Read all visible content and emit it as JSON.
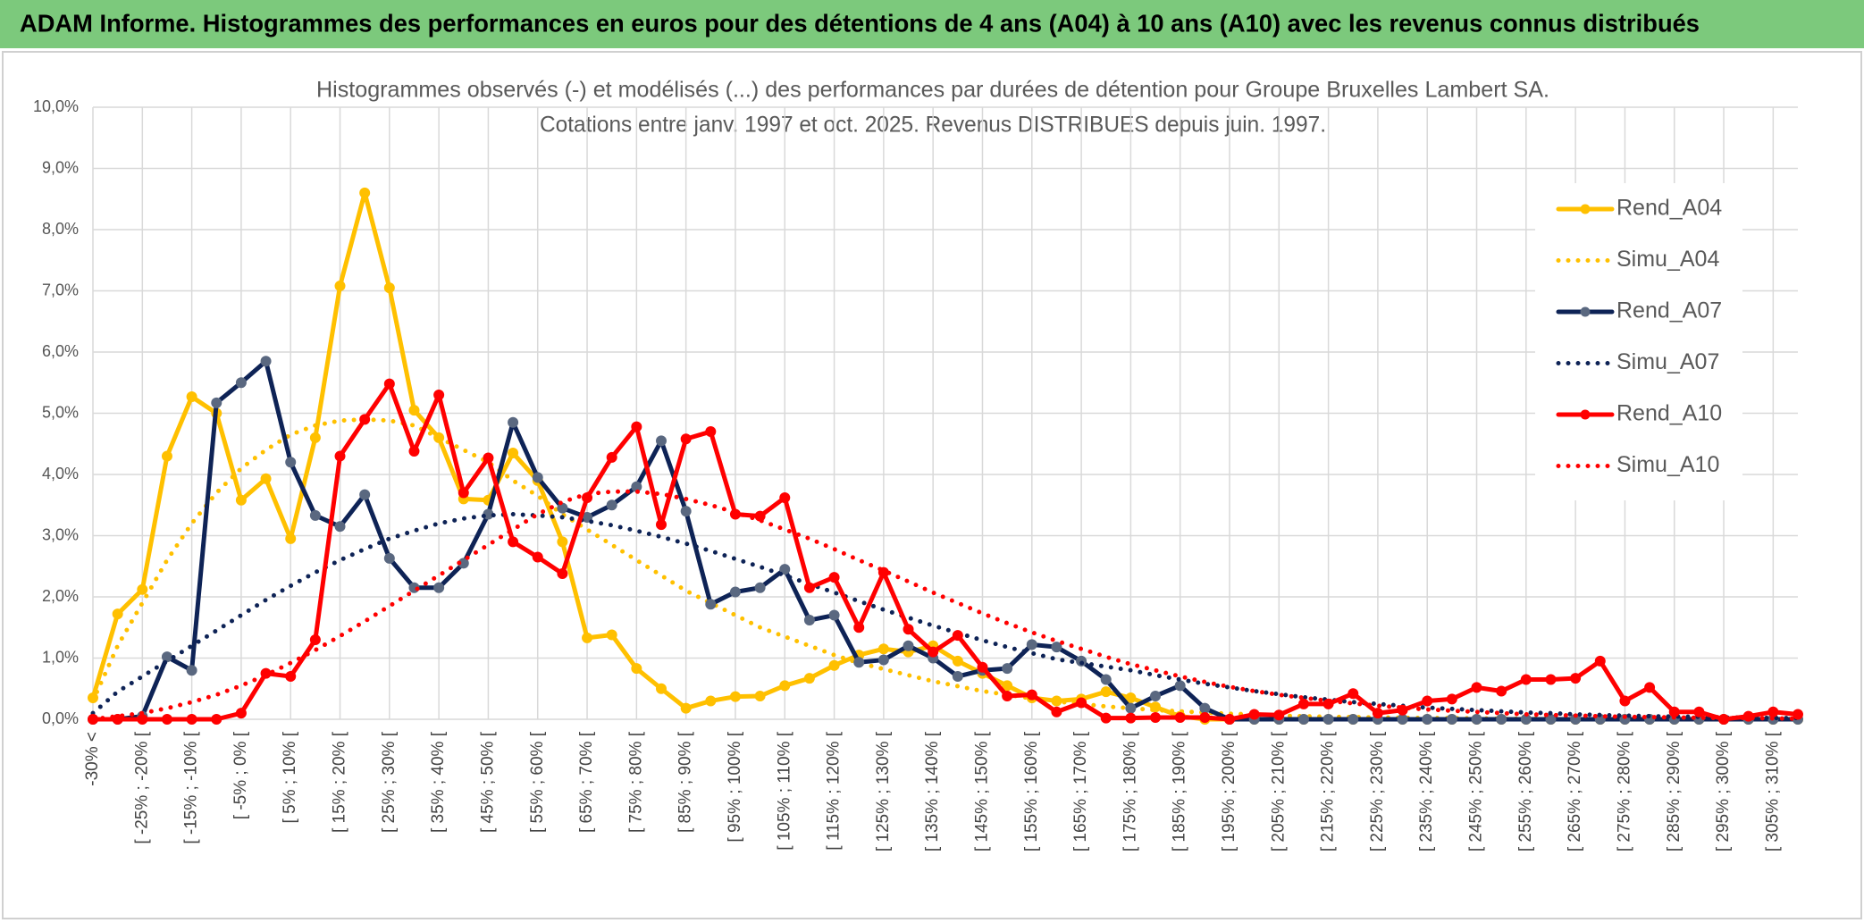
{
  "header": {
    "title": "ADAM Informe. Histogrammes des performances en euros pour des détentions de 4 ans (A04) à 10 ans (A10) avec les revenus connus distribués"
  },
  "chart_data": {
    "type": "line",
    "title": "Histogrammes observés (-) et modélisés (...) des performances par durées de détention pour Groupe Bruxelles Lambert SA.",
    "subtitle": "Cotations entre janv. 1997 et oct. 2025. Revenus DISTRIBUES depuis juin. 1997.",
    "categories": [
      "-30% <",
      null,
      "[ -25% ; -20% [",
      null,
      "[ -15% ; -10% [",
      null,
      "[ -5% ; 0% [",
      null,
      "[ 5% ; 10% [",
      null,
      "[ 15% ; 20% [",
      null,
      "[ 25% ; 30% [",
      null,
      "[ 35% ; 40% [",
      null,
      "[ 45% ; 50% [",
      null,
      "[ 55% ; 60% [",
      null,
      "[ 65% ; 70% [",
      null,
      "[ 75% ; 80% [",
      null,
      "[ 85% ; 90% [",
      null,
      "[ 95% ; 100% [",
      null,
      "[ 105% ; 110% [",
      null,
      "[ 115% ; 120% [",
      null,
      "[ 125% ; 130% [",
      null,
      "[ 135% ; 140% [",
      null,
      "[ 145% ; 150% [",
      null,
      "[ 155% ; 160% [",
      null,
      "[ 165% ; 170% [",
      null,
      "[ 175% ; 180% [",
      null,
      "[ 185% ; 190% [",
      null,
      "[ 195% ; 200% [",
      null,
      "[ 205% ; 210% [",
      null,
      "[ 215% ; 220% [",
      null,
      "[ 225% ; 230% [",
      null,
      "[ 235% ; 240% [",
      null,
      "[ 245% ; 250% [",
      null,
      "[ 255% ; 260% [",
      null,
      "[ 265% ; 270% [",
      null,
      "[ 275% ; 280% [",
      null,
      "[ 285% ; 290% [",
      null,
      "[ 295% ; 300% [",
      null,
      "[ 305% ; 310% [",
      null
    ],
    "series": [
      {
        "name": "Rend_A04",
        "color": "#ffc000",
        "line_style": "solid",
        "markers": true,
        "values": [
          0.35,
          1.72,
          2.12,
          4.3,
          5.27,
          5.0,
          3.58,
          3.93,
          2.95,
          4.6,
          7.08,
          8.6,
          7.05,
          5.05,
          4.6,
          3.6,
          3.58,
          4.35,
          3.9,
          2.9,
          1.33,
          1.38,
          0.83,
          0.5,
          0.18,
          0.3,
          0.37,
          0.38,
          0.55,
          0.67,
          0.88,
          1.05,
          1.15,
          1.1,
          1.2,
          0.95,
          0.75,
          0.55,
          0.35,
          0.3,
          0.33,
          0.45,
          0.35,
          0.2,
          0.05,
          0,
          0,
          0,
          0,
          0,
          0,
          0,
          0,
          0,
          0,
          0,
          0,
          0,
          0,
          0,
          0,
          0,
          0,
          0,
          0,
          0,
          0,
          0,
          0,
          0
        ]
      },
      {
        "name": "Simu_A04",
        "color": "#ffc000",
        "line_style": "dotted",
        "markers": false,
        "values": [
          0.3,
          1.2,
          1.9,
          2.6,
          3.2,
          3.7,
          4.1,
          4.4,
          4.65,
          4.8,
          4.88,
          4.9,
          4.88,
          4.8,
          4.6,
          4.4,
          4.2,
          3.9,
          3.65,
          3.35,
          3.1,
          2.85,
          2.6,
          2.35,
          2.1,
          1.9,
          1.7,
          1.5,
          1.35,
          1.2,
          1.05,
          0.92,
          0.82,
          0.72,
          0.62,
          0.54,
          0.46,
          0.4,
          0.34,
          0.29,
          0.25,
          0.21,
          0.18,
          0.15,
          0.13,
          0.11,
          0.09,
          0.08,
          0.06,
          0.05,
          0.04,
          0.035,
          0.03,
          0.025,
          0.02,
          0.02,
          0.015,
          0.01,
          0.01,
          0.01,
          0,
          0,
          0,
          0,
          0,
          0,
          0,
          0,
          0,
          0
        ]
      },
      {
        "name": "Rend_A07",
        "color": "#0e2356",
        "marker_color": "#5a6880",
        "line_style": "solid",
        "markers": true,
        "values": [
          0,
          0,
          0.05,
          1.02,
          0.8,
          5.17,
          5.5,
          5.85,
          4.2,
          3.33,
          3.15,
          3.67,
          2.63,
          2.15,
          2.15,
          2.55,
          3.35,
          4.85,
          3.95,
          3.45,
          3.3,
          3.5,
          3.8,
          4.55,
          3.4,
          1.88,
          2.08,
          2.15,
          2.45,
          1.62,
          1.7,
          0.93,
          0.97,
          1.2,
          1.0,
          0.7,
          0.8,
          0.83,
          1.22,
          1.18,
          0.95,
          0.65,
          0.18,
          0.38,
          0.55,
          0.18,
          0,
          0,
          0,
          0,
          0,
          0,
          0,
          0,
          0,
          0,
          0,
          0,
          0,
          0,
          0,
          0,
          0,
          0,
          0,
          0,
          0,
          0,
          0,
          0
        ]
      },
      {
        "name": "Simu_A07",
        "color": "#0e2356",
        "line_style": "dotted",
        "markers": false,
        "values": [
          0.1,
          0.45,
          0.7,
          0.95,
          1.2,
          1.45,
          1.7,
          1.95,
          2.18,
          2.4,
          2.6,
          2.78,
          2.95,
          3.08,
          3.2,
          3.28,
          3.33,
          3.35,
          3.33,
          3.3,
          3.24,
          3.17,
          3.08,
          2.98,
          2.87,
          2.75,
          2.62,
          2.49,
          2.35,
          2.21,
          2.07,
          1.93,
          1.79,
          1.66,
          1.53,
          1.41,
          1.29,
          1.18,
          1.08,
          0.98,
          0.92,
          0.86,
          0.8,
          0.72,
          0.65,
          0.58,
          0.52,
          0.46,
          0.41,
          0.36,
          0.32,
          0.28,
          0.25,
          0.22,
          0.19,
          0.17,
          0.15,
          0.13,
          0.11,
          0.1,
          0.08,
          0.07,
          0.06,
          0.05,
          0.045,
          0.04,
          0.03,
          0.03,
          0.02,
          0.02
        ]
      },
      {
        "name": "Rend_A10",
        "color": "#ff0000",
        "line_style": "solid",
        "markers": true,
        "values": [
          0,
          0,
          0,
          0,
          0,
          0,
          0.1,
          0.75,
          0.7,
          1.3,
          4.3,
          4.9,
          5.48,
          4.38,
          5.3,
          3.7,
          4.27,
          2.9,
          2.65,
          2.38,
          3.62,
          4.28,
          4.78,
          3.18,
          4.58,
          4.7,
          3.35,
          3.32,
          3.62,
          2.15,
          2.32,
          1.5,
          2.4,
          1.47,
          1.1,
          1.37,
          0.85,
          0.38,
          0.4,
          0.12,
          0.27,
          0.02,
          0.02,
          0.03,
          0.03,
          0.03,
          0,
          0.08,
          0.07,
          0.25,
          0.25,
          0.42,
          0.1,
          0.15,
          0.3,
          0.33,
          0.52,
          0.46,
          0.65,
          0.65,
          0.67,
          0.95,
          0.3,
          0.52,
          0.12,
          0.12,
          0,
          0.05,
          0.12,
          0.08
        ]
      },
      {
        "name": "Simu_A10",
        "color": "#ff0000",
        "line_style": "dotted",
        "markers": false,
        "values": [
          0,
          0.05,
          0.1,
          0.18,
          0.28,
          0.4,
          0.55,
          0.72,
          0.92,
          1.13,
          1.36,
          1.6,
          1.85,
          2.1,
          2.35,
          2.6,
          2.85,
          3.1,
          3.35,
          3.55,
          3.68,
          3.72,
          3.72,
          3.68,
          3.6,
          3.5,
          3.38,
          3.25,
          3.1,
          2.95,
          2.78,
          2.6,
          2.43,
          2.25,
          2.07,
          1.9,
          1.73,
          1.57,
          1.42,
          1.28,
          1.15,
          1.02,
          0.9,
          0.8,
          0.7,
          0.61,
          0.53,
          0.46,
          0.4,
          0.35,
          0.3,
          0.26,
          0.22,
          0.19,
          0.16,
          0.14,
          0.12,
          0.1,
          0.08,
          0.07,
          0.06,
          0.05,
          0.04,
          0.035,
          0.03,
          0.025,
          0.02,
          0.02,
          0.015,
          0.01
        ]
      }
    ],
    "ylim": [
      0,
      10
    ],
    "yticks": [
      {
        "value": 0,
        "label": "0,0%"
      },
      {
        "value": 1,
        "label": "1,0%"
      },
      {
        "value": 2,
        "label": "2,0%"
      },
      {
        "value": 3,
        "label": "3,0%"
      },
      {
        "value": 4,
        "label": "4,0%"
      },
      {
        "value": 5,
        "label": "5,0%"
      },
      {
        "value": 6,
        "label": "6,0%"
      },
      {
        "value": 7,
        "label": "7,0%"
      },
      {
        "value": 8,
        "label": "8,0%"
      },
      {
        "value": 9,
        "label": "9,0%"
      },
      {
        "value": 10,
        "label": "10,0%"
      }
    ],
    "grid": true,
    "legend_position": "right"
  }
}
